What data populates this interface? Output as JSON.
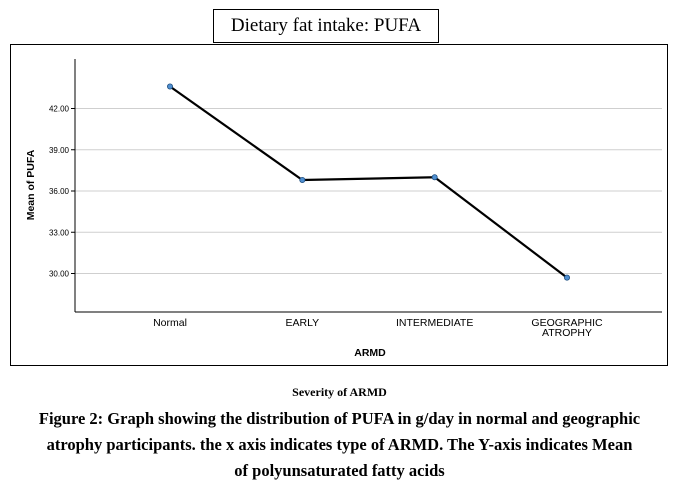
{
  "chart_data": {
    "type": "line",
    "title": "Dietary fat intake: PUFA",
    "xlabel": "ARMD",
    "ylabel": "Mean of PUFA",
    "categories": [
      "Normal",
      "EARLY",
      "INTERMEDIATE",
      "GEOGRAPHIC ATROPHY"
    ],
    "category_lines": [
      [
        "Normal"
      ],
      [
        "EARLY"
      ],
      [
        "INTERMEDIATE"
      ],
      [
        "GEOGRAPHIC",
        "ATROPHY"
      ]
    ],
    "values": [
      43.6,
      36.8,
      37.0,
      29.7
    ],
    "yticks": [
      "30.00",
      "33.00",
      "36.00",
      "39.00",
      "42.00"
    ],
    "ytick_values": [
      30,
      33,
      36,
      39,
      42
    ],
    "ylim": [
      27.2,
      45.6
    ],
    "grid": true,
    "line_color": "#000000",
    "marker_color": "#4f8fd1"
  },
  "below_chart_label": "Severity of ARMD",
  "caption_lines": [
    "Figure 2: Graph showing the distribution of PUFA in g/day in normal and geographic",
    "atrophy participants. the x axis indicates type of ARMD. The Y-axis indicates Mean",
    "of polyunsaturated fatty acids"
  ]
}
